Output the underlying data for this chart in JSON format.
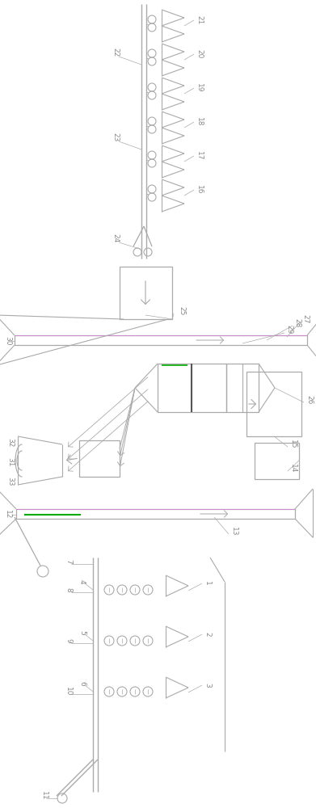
{
  "line_color": "#aaaaaa",
  "bg_color": "#ffffff",
  "text_color": "#888888",
  "green_color": "#00aa00",
  "figsize": [
    3.91,
    10.0
  ],
  "dpi": 100
}
